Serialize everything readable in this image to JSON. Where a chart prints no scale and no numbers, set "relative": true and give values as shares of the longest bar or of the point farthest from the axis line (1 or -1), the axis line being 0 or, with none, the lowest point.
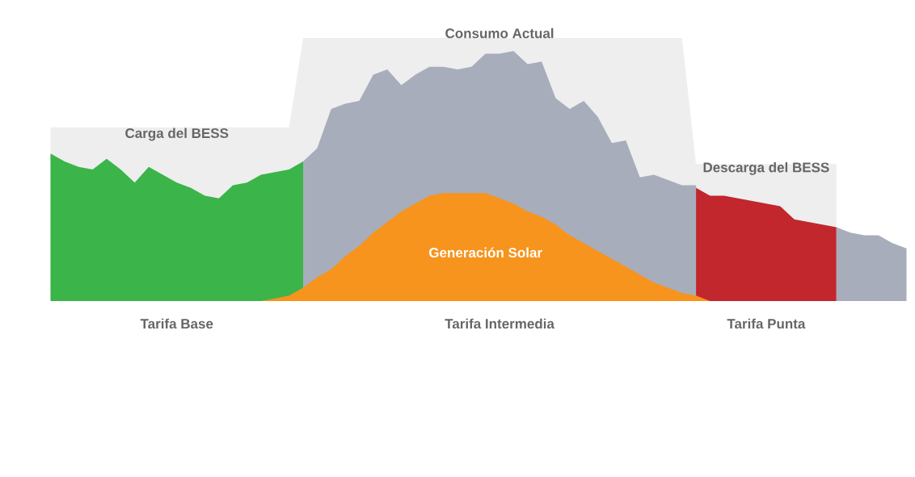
{
  "chart_data": {
    "type": "area",
    "relative": true,
    "categories": [
      null,
      null,
      null,
      null,
      null,
      null,
      null,
      null,
      null,
      null,
      null,
      null,
      null,
      null,
      null,
      null,
      null,
      null,
      null,
      null,
      null,
      null,
      null,
      null,
      null,
      null,
      null,
      null,
      null,
      null,
      null,
      null,
      null,
      null,
      null,
      null,
      null,
      null,
      null,
      null,
      null,
      null,
      null,
      null,
      null,
      null,
      null,
      null,
      null,
      null,
      null,
      null,
      null,
      null,
      null,
      null,
      null,
      null,
      null,
      null,
      null,
      null
    ],
    "series": [
      {
        "color": "#eeeeee",
        "values": [
          0.66,
          0.66,
          0.66,
          0.66,
          0.66,
          0.66,
          0.66,
          0.66,
          0.66,
          0.66,
          0.66,
          0.66,
          0.66,
          0.66,
          0.66,
          0.66,
          0.66,
          0.66,
          1.0,
          1.0,
          1.0,
          1.0,
          1.0,
          1.0,
          1.0,
          1.0,
          1.0,
          1.0,
          1.0,
          1.0,
          1.0,
          1.0,
          1.0,
          1.0,
          1.0,
          1.0,
          1.0,
          1.0,
          1.0,
          1.0,
          1.0,
          1.0,
          1.0,
          1.0,
          1.0,
          1.0,
          0.52,
          0.52,
          0.52,
          0.52,
          0.52,
          0.52,
          0.52,
          0.52,
          0.52,
          0.52,
          0.52,
          null,
          null,
          null,
          null,
          null
        ]
      },
      {
        "name": "Carga del BESS",
        "color": "#3bb44a",
        "values": [
          0.56,
          0.53,
          0.51,
          0.5,
          0.54,
          0.5,
          0.45,
          0.51,
          0.48,
          0.45,
          0.43,
          0.4,
          0.39,
          0.44,
          0.45,
          0.48,
          0.49,
          0.5,
          0.53,
          null,
          null,
          null,
          null,
          null,
          null,
          null,
          null,
          null,
          null,
          null,
          null,
          null,
          null,
          null,
          null,
          null,
          null,
          null,
          null,
          null,
          null,
          null,
          null,
          null,
          null,
          null,
          null,
          null,
          null,
          null,
          null,
          null,
          null,
          null,
          null,
          null,
          null,
          null,
          null,
          null,
          null,
          null
        ]
      },
      {
        "name": "Consumo Actual",
        "color": "#a7adbb",
        "values": [
          null,
          null,
          null,
          null,
          null,
          null,
          null,
          null,
          null,
          null,
          null,
          null,
          null,
          null,
          null,
          null,
          null,
          null,
          0.53,
          0.58,
          0.73,
          0.75,
          0.76,
          0.86,
          0.88,
          0.82,
          0.86,
          0.89,
          0.89,
          0.88,
          0.89,
          0.94,
          0.94,
          0.95,
          0.9,
          0.91,
          0.77,
          0.73,
          0.76,
          0.7,
          0.6,
          0.61,
          0.47,
          0.48,
          0.46,
          0.44,
          0.44,
          null,
          null,
          null,
          null,
          null,
          null,
          null,
          null,
          null,
          0.28,
          0.26,
          0.25,
          0.25,
          0.22,
          0.2
        ]
      },
      {
        "name": "Descarga del BESS",
        "color": "#c1272d",
        "values": [
          null,
          null,
          null,
          null,
          null,
          null,
          null,
          null,
          null,
          null,
          null,
          null,
          null,
          null,
          null,
          null,
          null,
          null,
          null,
          null,
          null,
          null,
          null,
          null,
          null,
          null,
          null,
          null,
          null,
          null,
          null,
          null,
          null,
          null,
          null,
          null,
          null,
          null,
          null,
          null,
          null,
          null,
          null,
          null,
          null,
          null,
          0.43,
          0.4,
          0.4,
          0.39,
          0.38,
          0.37,
          0.36,
          0.31,
          0.3,
          0.29,
          0.28,
          null,
          null,
          null,
          null,
          null
        ]
      },
      {
        "name": "Generación Solar",
        "color": "#f7941d",
        "values": [
          null,
          null,
          null,
          null,
          null,
          null,
          null,
          null,
          null,
          null,
          null,
          null,
          null,
          null,
          null,
          0,
          0.01,
          0.02,
          0.05,
          0.09,
          0.12,
          0.17,
          0.21,
          0.26,
          0.3,
          0.34,
          0.37,
          0.4,
          0.41,
          0.41,
          0.41,
          0.41,
          0.39,
          0.37,
          0.34,
          0.32,
          0.29,
          0.25,
          0.22,
          0.19,
          0.16,
          0.13,
          0.1,
          0.07,
          0.05,
          0.03,
          0.02,
          0,
          null,
          null,
          null,
          null,
          null,
          null,
          null,
          null,
          null,
          null,
          null,
          null,
          null,
          null
        ]
      }
    ],
    "annotations": [
      "Tarifa Base",
      "Tarifa Intermedia",
      "Tarifa Punta"
    ]
  }
}
